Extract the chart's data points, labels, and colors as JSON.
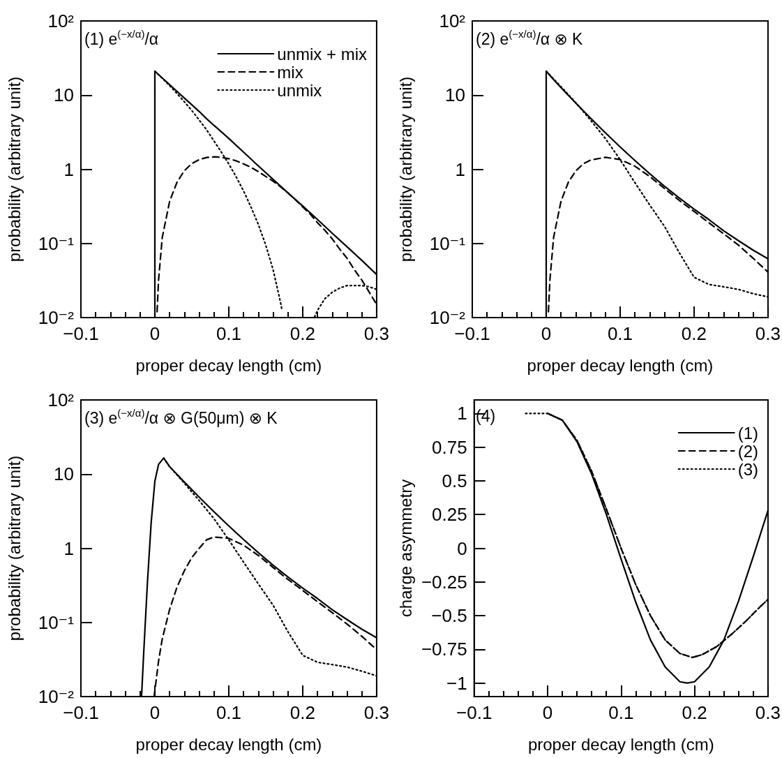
{
  "chart_data": [
    {
      "type": "line",
      "title": "(1) e$^{(−x/α)}$/α",
      "xlabel": "proper decay length (cm)",
      "ylabel": "probability (arbitrary unit)",
      "log": "y",
      "marker": "none",
      "legend": "top right",
      "xlim": [
        -0.1,
        0.3
      ],
      "xticks": [
        -0.1,
        0,
        0.1,
        0.2,
        0.3
      ],
      "ylim": [
        0.01,
        100
      ],
      "yticks": [
        {
          "value": 0.01,
          "label": "10⁻²"
        },
        {
          "value": 0.1,
          "label": "10⁻¹"
        },
        1,
        10,
        {
          "value": 100,
          "label": "10²"
        }
      ],
      "series": [
        {
          "name": "unmix + mix",
          "color": "#000000",
          "line_style": "solid",
          "x": [
            0,
            0,
            0.01,
            0.02,
            0.03,
            0.04,
            0.05,
            0.06,
            0.07,
            0.08,
            0.09,
            0.1,
            0.12,
            0.14,
            0.16,
            0.18,
            0.2,
            0.22,
            0.24,
            0.26,
            0.28,
            0.3
          ],
          "values": [
            0.01,
            21,
            17,
            13.8,
            11.2,
            9.1,
            7.4,
            6.0,
            4.8,
            3.9,
            3.2,
            2.6,
            1.7,
            1.11,
            0.73,
            0.48,
            0.32,
            0.21,
            0.137,
            0.09,
            0.059,
            0.038
          ]
        },
        {
          "name": "mix",
          "color": "#000000",
          "line_style": "dashed",
          "x": [
            0.003,
            0.005,
            0.01,
            0.02,
            0.03,
            0.04,
            0.05,
            0.06,
            0.07,
            0.08,
            0.09,
            0.1,
            0.11,
            0.12,
            0.13,
            0.14,
            0.15,
            0.16,
            0.17,
            0.18,
            0.19,
            0.2,
            0.21,
            0.22,
            0.23,
            0.24,
            0.25,
            0.26,
            0.27,
            0.28,
            0.29,
            0.3
          ],
          "values": [
            0.012,
            0.032,
            0.12,
            0.37,
            0.67,
            0.96,
            1.19,
            1.35,
            1.44,
            1.47,
            1.45,
            1.39,
            1.3,
            1.18,
            1.06,
            0.93,
            0.8,
            0.69,
            0.58,
            0.48,
            0.39,
            0.31,
            0.25,
            0.19,
            0.15,
            0.115,
            0.084,
            0.063,
            0.044,
            0.032,
            0.022,
            0.015
          ]
        },
        {
          "name": "unmix",
          "color": "#000000",
          "line_style": "dotted",
          "x": [
            0,
            0.01,
            0.02,
            0.03,
            0.04,
            0.05,
            0.06,
            0.07,
            0.08,
            0.09,
            0.1,
            0.11,
            0.12,
            0.13,
            0.14,
            0.15,
            0.16,
            0.17,
            0.172,
            0.19,
            0.216,
            0.22,
            0.23,
            0.24,
            0.25,
            0.26,
            0.27,
            0.28,
            0.29,
            0.3
          ],
          "values": [
            21,
            16.9,
            13.4,
            10.5,
            8.1,
            6.2,
            4.6,
            3.4,
            2.4,
            1.7,
            1.18,
            0.79,
            0.51,
            0.31,
            0.18,
            0.095,
            0.044,
            0.016,
            0.0125,
            null,
            0.0102,
            0.0125,
            0.018,
            0.022,
            0.025,
            0.027,
            0.027,
            0.027,
            0.026,
            0.024
          ]
        }
      ]
    },
    {
      "type": "line",
      "title": "(2) e$^{(−x/α)}$/α ⊗ K",
      "xlabel": "proper decay length (cm)",
      "ylabel": "probability (arbitrary unit)",
      "log": "y",
      "marker": "none",
      "xlim": [
        -0.1,
        0.3
      ],
      "xticks": [
        -0.1,
        0,
        0.1,
        0.2,
        0.3
      ],
      "ylim": [
        0.01,
        100
      ],
      "yticks": [
        {
          "value": 0.01,
          "label": "10⁻²"
        },
        {
          "value": 0.1,
          "label": "10⁻¹"
        },
        1,
        10,
        {
          "value": 100,
          "label": "10²"
        }
      ],
      "series": [
        {
          "color": "#000000",
          "line_style": "solid",
          "x": [
            0,
            0,
            0.01,
            0.02,
            0.04,
            0.06,
            0.08,
            0.1,
            0.12,
            0.14,
            0.16,
            0.18,
            0.2,
            0.22,
            0.24,
            0.26,
            0.28,
            0.3
          ],
          "values": [
            0.01,
            21,
            16.2,
            12.6,
            7.8,
            4.9,
            3.1,
            2.0,
            1.31,
            0.87,
            0.59,
            0.41,
            0.29,
            0.21,
            0.148,
            0.109,
            0.081,
            0.062
          ]
        },
        {
          "color": "#000000",
          "line_style": "dashed",
          "x": [
            0.003,
            0.005,
            0.01,
            0.02,
            0.03,
            0.04,
            0.05,
            0.06,
            0.08,
            0.1,
            0.12,
            0.14,
            0.16,
            0.18,
            0.2,
            0.22,
            0.24,
            0.26,
            0.28,
            0.3
          ],
          "values": [
            0.012,
            0.032,
            0.12,
            0.37,
            0.67,
            0.95,
            1.18,
            1.33,
            1.45,
            1.35,
            1.1,
            0.8,
            0.55,
            0.38,
            0.27,
            0.19,
            0.135,
            0.095,
            0.063,
            0.041
          ]
        },
        {
          "color": "#000000",
          "line_style": "dotted",
          "x": [
            0,
            0.01,
            0.02,
            0.04,
            0.06,
            0.08,
            0.1,
            0.12,
            0.14,
            0.16,
            0.18,
            0.2,
            0.22,
            0.24,
            0.26,
            0.28,
            0.3
          ],
          "values": [
            21,
            16.5,
            13.0,
            7.9,
            4.6,
            2.6,
            1.35,
            0.66,
            0.33,
            0.17,
            0.075,
            0.035,
            0.028,
            0.026,
            0.024,
            0.021,
            0.019
          ]
        }
      ]
    },
    {
      "type": "line",
      "title": "(3) e$^{(−x/α)}$/α ⊗ G(50μm) ⊗ K",
      "xlabel": "proper decay length (cm)",
      "ylabel": "probability (arbitrary unit)",
      "log": "y",
      "marker": "none",
      "xlim": [
        -0.1,
        0.3
      ],
      "xticks": [
        -0.1,
        0,
        0.1,
        0.2,
        0.3
      ],
      "ylim": [
        0.01,
        100
      ],
      "yticks": [
        {
          "value": 0.01,
          "label": "10⁻²"
        },
        {
          "value": 0.1,
          "label": "10⁻¹"
        },
        1,
        10,
        {
          "value": 100,
          "label": "10²"
        }
      ],
      "series": [
        {
          "color": "#000000",
          "line_style": "solid",
          "x": [
            -0.018,
            -0.015,
            -0.01,
            -0.005,
            0,
            0.005,
            0.012,
            0.02,
            0.04,
            0.06,
            0.08,
            0.1,
            0.12,
            0.14,
            0.16,
            0.18,
            0.2,
            0.22,
            0.24,
            0.26,
            0.28,
            0.3
          ],
          "values": [
            0.01,
            0.04,
            0.35,
            2.2,
            8,
            13.5,
            16.5,
            12.6,
            7.8,
            4.9,
            3.1,
            2.0,
            1.31,
            0.87,
            0.59,
            0.41,
            0.29,
            0.21,
            0.148,
            0.109,
            0.081,
            0.062
          ]
        },
        {
          "color": "#000000",
          "line_style": "dashed",
          "x": [
            -0.001,
            0.005,
            0.01,
            0.02,
            0.03,
            0.04,
            0.05,
            0.06,
            0.07,
            0.08,
            0.1,
            0.12,
            0.14,
            0.16,
            0.18,
            0.2,
            0.22,
            0.24,
            0.26,
            0.28,
            0.3
          ],
          "values": [
            0.01,
            0.03,
            0.06,
            0.15,
            0.3,
            0.5,
            0.75,
            1.0,
            1.3,
            1.42,
            1.36,
            1.1,
            0.8,
            0.55,
            0.38,
            0.27,
            0.19,
            0.135,
            0.095,
            0.065,
            0.043
          ]
        },
        {
          "color": "#000000",
          "line_style": "dotted",
          "x": [
            0.012,
            0.02,
            0.04,
            0.06,
            0.08,
            0.1,
            0.12,
            0.14,
            0.16,
            0.18,
            0.2,
            0.22,
            0.24,
            0.26,
            0.28,
            0.3
          ],
          "values": [
            16.3,
            12.6,
            7.5,
            4.4,
            2.5,
            1.3,
            0.65,
            0.33,
            0.17,
            0.075,
            0.036,
            0.029,
            0.027,
            0.025,
            0.022,
            0.019
          ]
        }
      ]
    },
    {
      "type": "line",
      "title": "(4)",
      "xlabel": "proper decay length (cm)",
      "ylabel": "charge asymmetry",
      "marker": "none",
      "legend": "top right",
      "xlim": [
        -0.1,
        0.3
      ],
      "xticks": [
        -0.1,
        0,
        0.1,
        0.2,
        0.3
      ],
      "ylim": [
        -1.1,
        1.1
      ],
      "yticks": [
        -1,
        -0.75,
        -0.5,
        -0.25,
        0,
        0.25,
        0.5,
        0.75,
        1
      ],
      "series": [
        {
          "name": "(1)",
          "color": "#000000",
          "line_style": "solid",
          "x": [
            0,
            0.02,
            0.04,
            0.06,
            0.08,
            0.1,
            0.12,
            0.14,
            0.16,
            0.18,
            0.19,
            0.2,
            0.22,
            0.24,
            0.26,
            0.28,
            0.3
          ],
          "values": [
            1,
            0.95,
            0.79,
            0.55,
            0.25,
            -0.08,
            -0.4,
            -0.68,
            -0.88,
            -0.99,
            -1,
            -0.99,
            -0.88,
            -0.68,
            -0.39,
            -0.06,
            0.28
          ]
        },
        {
          "name": "(2)",
          "color": "#000000",
          "line_style": "dashed",
          "x": [
            0,
            0.02,
            0.04,
            0.06,
            0.08,
            0.1,
            0.12,
            0.14,
            0.16,
            0.18,
            0.197,
            0.21,
            0.23,
            0.25,
            0.27,
            0.29,
            0.3
          ],
          "values": [
            1,
            0.95,
            0.8,
            0.57,
            0.29,
            0,
            -0.27,
            -0.5,
            -0.68,
            -0.78,
            -0.81,
            -0.79,
            -0.73,
            -0.64,
            -0.54,
            -0.43,
            -0.38
          ]
        },
        {
          "name": "(3)",
          "color": "#000000",
          "line_style": "dotted",
          "x": [
            -0.03,
            0,
            0.02,
            0.04,
            0.06,
            0.08,
            0.1,
            0.12,
            0.14,
            0.16,
            0.18,
            0.197,
            0.21,
            0.23,
            0.25,
            0.27,
            0.29,
            0.3
          ],
          "values": [
            1,
            1,
            0.95,
            0.8,
            0.57,
            0.29,
            0,
            -0.27,
            -0.5,
            -0.68,
            -0.78,
            -0.81,
            -0.79,
            -0.73,
            -0.64,
            -0.54,
            -0.43,
            -0.38
          ]
        }
      ]
    }
  ]
}
